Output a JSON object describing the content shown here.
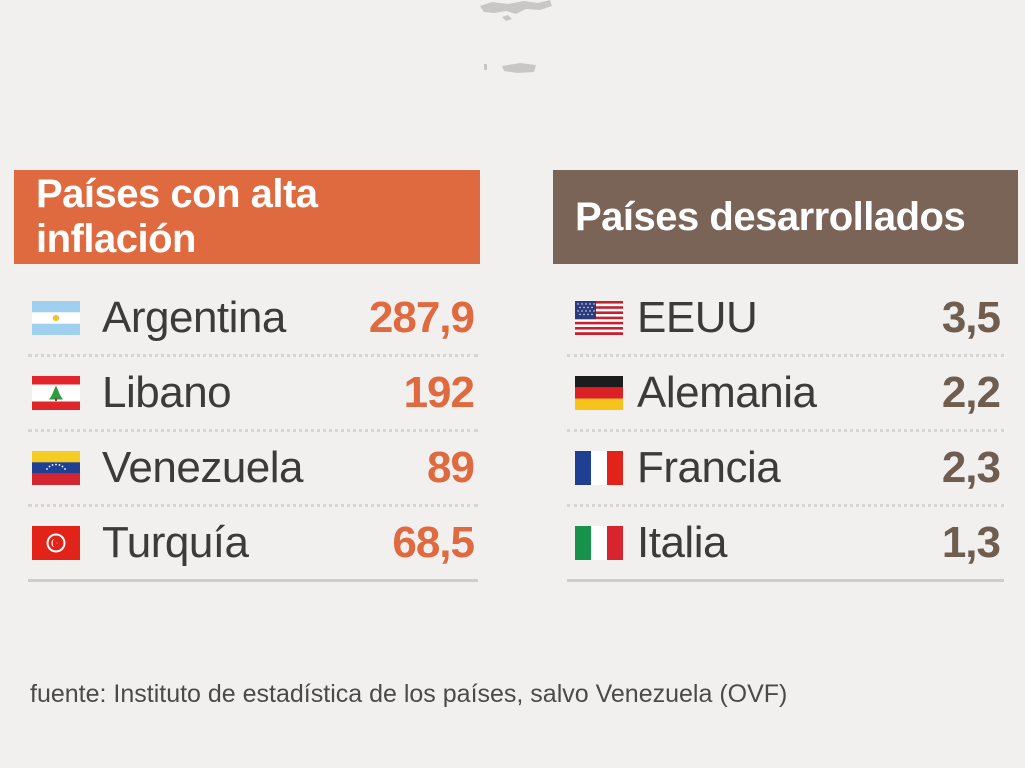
{
  "colors": {
    "background": "#f1f0ef",
    "high_inflation_accent": "#e06a3f",
    "developed_accent": "#7a6457",
    "developed_value": "#6f5d50"
  },
  "chart_data": [
    {
      "type": "table",
      "title": "Países con alta inflación",
      "columns": [
        "flag",
        "country",
        "value"
      ],
      "rows": [
        {
          "flag": "argentina-flag-icon",
          "country": "Argentina",
          "value": "287,9"
        },
        {
          "flag": "lebanon-flag-icon",
          "country": "Libano",
          "value": "192"
        },
        {
          "flag": "venezuela-flag-icon",
          "country": "Venezuela",
          "value": "89"
        },
        {
          "flag": "turkey-flag-icon",
          "country": "Turquía",
          "value": "68,5"
        }
      ]
    },
    {
      "type": "table",
      "title": "Países desarrollados",
      "columns": [
        "flag",
        "country",
        "value"
      ],
      "rows": [
        {
          "flag": "usa-flag-icon",
          "country": "EEUU",
          "value": "3,5"
        },
        {
          "flag": "germany-flag-icon",
          "country": "Alemania",
          "value": "2,2"
        },
        {
          "flag": "france-flag-icon",
          "country": "Francia",
          "value": "2,3"
        },
        {
          "flag": "italy-flag-icon",
          "country": "Italia",
          "value": "1,3"
        }
      ]
    }
  ],
  "source": "fuente: Instituto de estadística de los países, salvo Venezuela (OVF)"
}
